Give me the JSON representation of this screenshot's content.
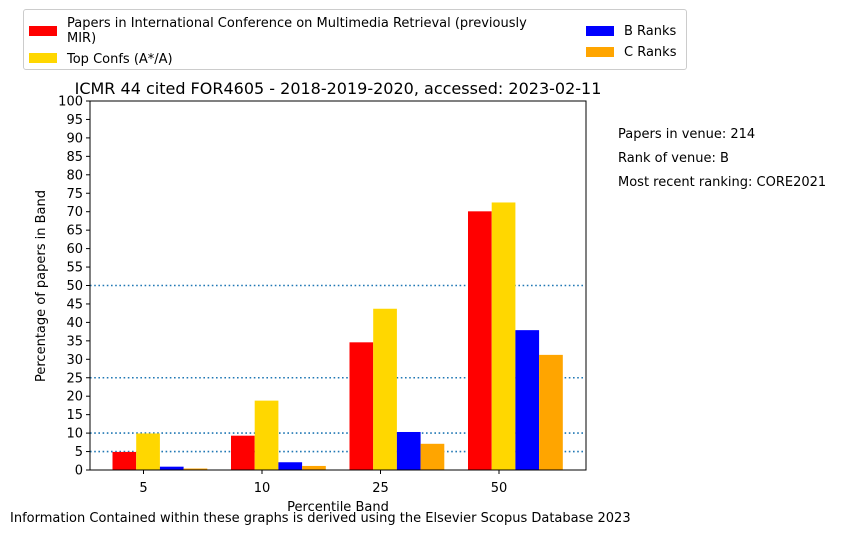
{
  "chart_data": {
    "type": "bar",
    "title": "ICMR 44 cited FOR4605 - 2018-2019-2020, accessed: 2023-02-11",
    "xlabel": "Percentile Band",
    "ylabel": "Percentage of papers in Band",
    "categories": [
      "5",
      "10",
      "25",
      "50"
    ],
    "ylim": [
      0,
      100
    ],
    "yticks": [
      0,
      5,
      10,
      15,
      20,
      25,
      30,
      35,
      40,
      45,
      50,
      55,
      60,
      65,
      70,
      75,
      80,
      85,
      90,
      95,
      100
    ],
    "reference_lines": [
      5,
      10,
      25,
      50
    ],
    "series": [
      {
        "name": "Papers in International Conference on Multimedia Retrieval (previously MIR)",
        "color": "#ff0000",
        "values": [
          4.9,
          9.3,
          34.6,
          70.1
        ]
      },
      {
        "name": "Top Confs (A*/A)",
        "color": "#ffd700",
        "values": [
          9.9,
          18.8,
          43.7,
          72.5
        ]
      },
      {
        "name": "B Ranks",
        "color": "#0000ff",
        "values": [
          0.9,
          2.1,
          10.3,
          37.9
        ]
      },
      {
        "name": "C Ranks",
        "color": "#ffa500",
        "values": [
          0.4,
          1.1,
          7.1,
          31.2
        ]
      }
    ],
    "legend_position": "top",
    "grid": false
  },
  "legend": {
    "series_0_line1": "Papers in International Conference on Multimedia Retrieval (previously",
    "series_0_line2": "MIR)",
    "series_1": "Top Confs (A*/A)",
    "series_2": "B Ranks",
    "series_3": "C Ranks"
  },
  "notes": {
    "papers_in_venue": "Papers in venue: 214",
    "rank_of_venue": "Rank of venue: B",
    "recent_ranking": "Most recent ranking: CORE2021"
  },
  "footer": "Information Contained within these graphs is derived using the Elsevier Scopus Database 2023"
}
